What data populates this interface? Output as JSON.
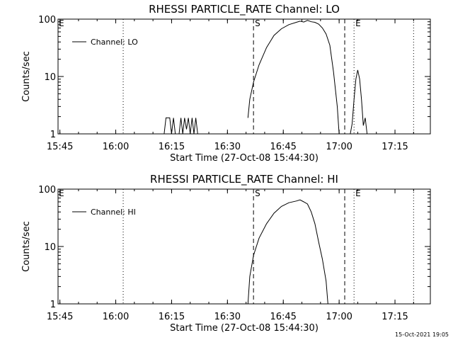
{
  "footer": {
    "timestamp": "15-Oct-2021 19:05"
  },
  "chart_data": [
    {
      "type": "line",
      "title": "RHESSI PARTICLE_RATE Channel: LO",
      "xlabel": "Start Time (27-Oct-08 15:44:30)",
      "ylabel": "Counts/sec",
      "yscale": "log",
      "ylim": [
        1,
        100
      ],
      "xlim_minutes": [
        0,
        100
      ],
      "x_ticks": [
        {
          "t": 0.5,
          "label": "15:45"
        },
        {
          "t": 15.5,
          "label": "16:00"
        },
        {
          "t": 30.5,
          "label": "16:15"
        },
        {
          "t": 45.5,
          "label": "16:30"
        },
        {
          "t": 60.5,
          "label": "16:45"
        },
        {
          "t": 75.5,
          "label": "17:00"
        },
        {
          "t": 90.5,
          "label": "17:15"
        }
      ],
      "y_ticks": [
        {
          "v": 1,
          "label": "1"
        },
        {
          "v": 10,
          "label": "10"
        },
        {
          "v": 100,
          "label": "100"
        }
      ],
      "legend": {
        "label": "Channel: LO",
        "position": "top-left"
      },
      "markers": [
        {
          "t": 17.5,
          "style": "dotted",
          "label": ""
        },
        {
          "t": 52.5,
          "style": "dashed",
          "label": "S"
        },
        {
          "t": 77.0,
          "style": "dashed",
          "label": ""
        },
        {
          "t": 79.5,
          "style": "dotted",
          "label": "E"
        },
        {
          "t": 95.5,
          "style": "dotted",
          "label": ""
        }
      ],
      "corner_label": "E",
      "series": [
        {
          "segments": [
            [
              [
                28.5,
                1
              ],
              [
                29.0,
                1.9
              ],
              [
                30.0,
                1.9
              ],
              [
                30.5,
                1
              ],
              [
                31.0,
                1.9
              ],
              [
                31.5,
                1
              ],
              [
                32.5,
                1
              ],
              [
                33.0,
                1.9
              ],
              [
                33.5,
                1
              ],
              [
                34.0,
                1.9
              ],
              [
                34.5,
                1.2
              ],
              [
                35.0,
                1.9
              ],
              [
                35.5,
                1
              ],
              [
                36.0,
                1.9
              ],
              [
                36.5,
                1
              ],
              [
                37.0,
                1.9
              ],
              [
                37.5,
                1
              ]
            ],
            [
              [
                51.0,
                1.9
              ],
              [
                51.5,
                4
              ],
              [
                52.5,
                8
              ],
              [
                54,
                16
              ],
              [
                56,
                32
              ],
              [
                58,
                52
              ],
              [
                60,
                68
              ],
              [
                62,
                80
              ],
              [
                64,
                88
              ],
              [
                65,
                92
              ],
              [
                66,
                89
              ],
              [
                67,
                95
              ],
              [
                68,
                90
              ],
              [
                69,
                88
              ],
              [
                70,
                82
              ],
              [
                71,
                70
              ],
              [
                72,
                55
              ],
              [
                73,
                35
              ],
              [
                74,
                12
              ],
              [
                75,
                3
              ],
              [
                75.5,
                1
              ]
            ],
            [
              [
                78.5,
                1
              ],
              [
                79,
                1.5
              ],
              [
                79.5,
                4
              ],
              [
                80,
                9
              ],
              [
                80.5,
                13
              ],
              [
                81,
                9
              ],
              [
                81.5,
                4
              ],
              [
                82,
                1.4
              ],
              [
                82.5,
                1.9
              ],
              [
                83,
                1
              ]
            ]
          ]
        }
      ]
    },
    {
      "type": "line",
      "title": "RHESSI PARTICLE_RATE Channel: HI",
      "xlabel": "Start Time (27-Oct-08 15:44:30)",
      "ylabel": "Counts/sec",
      "yscale": "log",
      "ylim": [
        1,
        100
      ],
      "xlim_minutes": [
        0,
        100
      ],
      "x_ticks": [
        {
          "t": 0.5,
          "label": "15:45"
        },
        {
          "t": 15.5,
          "label": "16:00"
        },
        {
          "t": 30.5,
          "label": "16:15"
        },
        {
          "t": 45.5,
          "label": "16:30"
        },
        {
          "t": 60.5,
          "label": "16:45"
        },
        {
          "t": 75.5,
          "label": "17:00"
        },
        {
          "t": 90.5,
          "label": "17:15"
        }
      ],
      "y_ticks": [
        {
          "v": 1,
          "label": "1"
        },
        {
          "v": 10,
          "label": "10"
        },
        {
          "v": 100,
          "label": "100"
        }
      ],
      "legend": {
        "label": "Channel: HI",
        "position": "top-left"
      },
      "markers": [
        {
          "t": 17.5,
          "style": "dotted",
          "label": ""
        },
        {
          "t": 52.5,
          "style": "dashed",
          "label": "S"
        },
        {
          "t": 77.0,
          "style": "dashed",
          "label": ""
        },
        {
          "t": 79.5,
          "style": "dotted",
          "label": "E"
        },
        {
          "t": 95.5,
          "style": "dotted",
          "label": ""
        }
      ],
      "corner_label": "E",
      "series": [
        {
          "segments": [
            [
              [
                51.0,
                1
              ],
              [
                51.5,
                3
              ],
              [
                52.5,
                7
              ],
              [
                54,
                14
              ],
              [
                56,
                25
              ],
              [
                58,
                38
              ],
              [
                60,
                50
              ],
              [
                62,
                58
              ],
              [
                64,
                62
              ],
              [
                65,
                65
              ],
              [
                66,
                60
              ],
              [
                67,
                55
              ],
              [
                68,
                40
              ],
              [
                69,
                25
              ],
              [
                70,
                12
              ],
              [
                71,
                6
              ],
              [
                72,
                2.5
              ],
              [
                72.5,
                1
              ]
            ]
          ]
        }
      ]
    }
  ]
}
